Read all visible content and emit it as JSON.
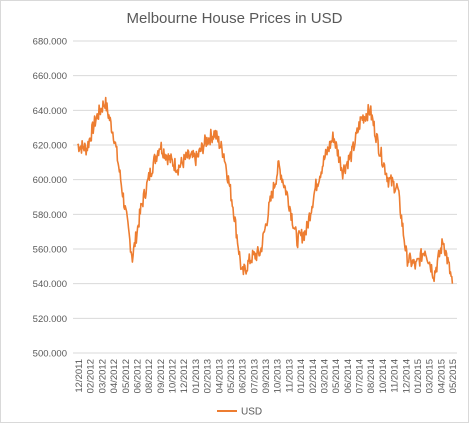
{
  "chart_data": {
    "type": "line",
    "title": "Melbourne House Prices in USD",
    "xlabel": "",
    "ylabel": "",
    "ylim": [
      500000,
      680000
    ],
    "y_ticks": [
      "500.000",
      "520.000",
      "540.000",
      "560.000",
      "580.000",
      "600.000",
      "620.000",
      "640.000",
      "660.000",
      "680.000"
    ],
    "y_tick_values": [
      500000,
      520000,
      540000,
      560000,
      580000,
      600000,
      620000,
      640000,
      660000,
      680000
    ],
    "x_range": [
      "2011-12",
      "2015-05"
    ],
    "x_ticks": [
      "12/2011",
      "02/2012",
      "03/2012",
      "04/2012",
      "05/2012",
      "06/2012",
      "08/2012",
      "09/2012",
      "10/2012",
      "12/2012",
      "01/2013",
      "02/2013",
      "04/2013",
      "05/2013",
      "06/2013",
      "07/2013",
      "09/2013",
      "10/2013",
      "11/2013",
      "01/2014",
      "02/2014",
      "03/2014",
      "05/2014",
      "06/2014",
      "07/2014",
      "08/2014",
      "10/2014",
      "11/2014",
      "12/2014",
      "01/2015",
      "03/2015",
      "04/2015",
      "05/2015"
    ],
    "grid": "horizontal",
    "legend": "bottom",
    "series": [
      {
        "name": "USD",
        "color": "#ed7d31",
        "x": [
          "2011-12",
          "2012-01",
          "2012-02",
          "2012-03",
          "2012-04",
          "2012-05",
          "2012-06",
          "2012-07",
          "2012-08",
          "2012-09",
          "2012-10",
          "2012-11",
          "2012-12",
          "2013-01",
          "2013-02",
          "2013-03",
          "2013-04",
          "2013-05",
          "2013-06",
          "2013-07",
          "2013-08",
          "2013-09",
          "2013-10",
          "2013-11",
          "2013-12",
          "2014-01",
          "2014-02",
          "2014-03",
          "2014-04",
          "2014-05",
          "2014-06",
          "2014-07",
          "2014-08",
          "2014-09",
          "2014-10",
          "2014-11",
          "2014-12",
          "2015-01",
          "2015-02",
          "2015-03",
          "2015-04",
          "2015-05"
        ],
        "values": [
          620000,
          618000,
          635000,
          645000,
          625000,
          590000,
          555000,
          585000,
          605000,
          620000,
          612000,
          607000,
          613000,
          612000,
          622000,
          627000,
          615000,
          585000,
          545000,
          555000,
          558000,
          585000,
          608000,
          590000,
          565000,
          570000,
          595000,
          612000,
          625000,
          605000,
          615000,
          635000,
          640000,
          618000,
          600000,
          595000,
          555000,
          550000,
          560000,
          545000,
          565000,
          540000
        ]
      }
    ]
  }
}
